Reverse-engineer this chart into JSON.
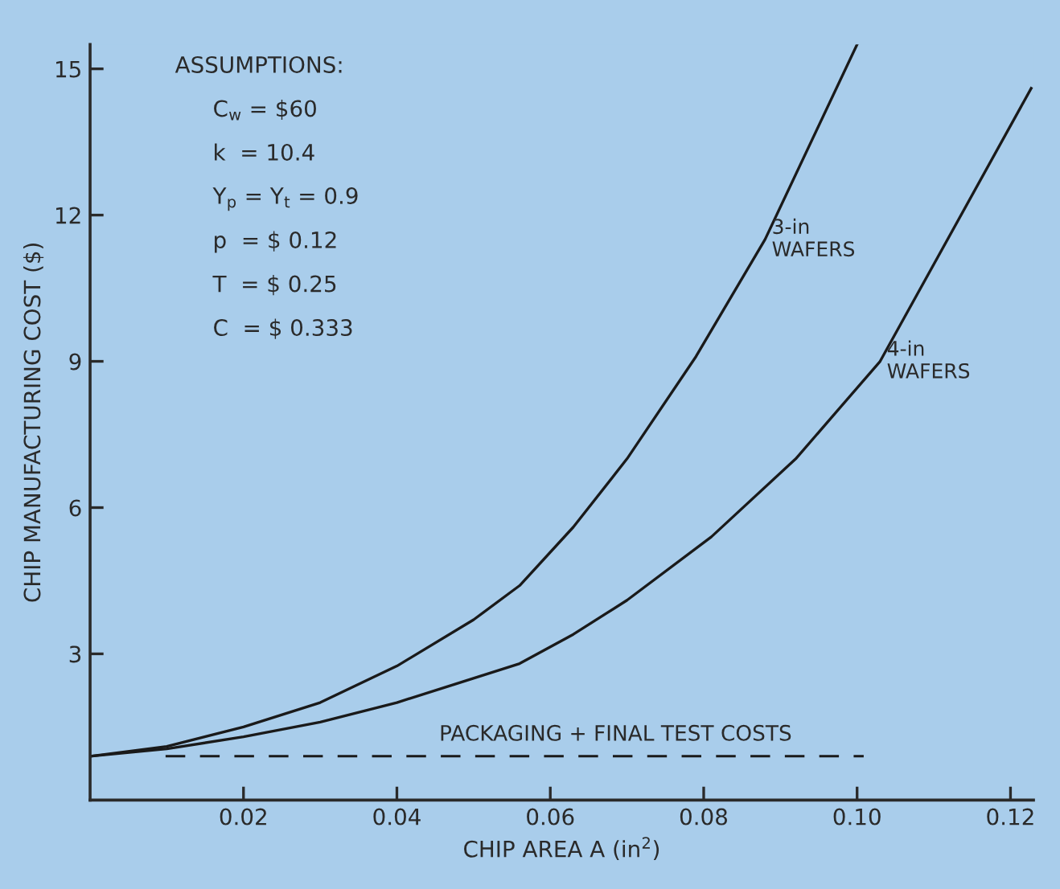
{
  "chart_data": {
    "type": "line",
    "xlabel": "CHIP AREA A (in$^{2}$)",
    "ylabel": "CHIP MANUFACTURING COST ($)",
    "series": [
      {
        "name": "3-in\nWAFERS",
        "color": "#1a1a1a",
        "x": [
          0,
          0.01,
          0.02,
          0.03,
          0.04,
          0.05,
          0.056,
          0.063,
          0.07,
          0.079,
          0.088,
          0.1
        ],
        "values": [
          0.9,
          1.1,
          1.5,
          2.0,
          2.75,
          3.7,
          4.4,
          5.6,
          7.0,
          9.1,
          11.5,
          15.5
        ]
      },
      {
        "name": "4-in\nWAFERS",
        "color": "#1a1a1a",
        "x": [
          0,
          0.01,
          0.02,
          0.03,
          0.04,
          0.048,
          0.056,
          0.063,
          0.07,
          0.081,
          0.092,
          0.103,
          0.1227
        ],
        "values": [
          0.9,
          1.05,
          1.3,
          1.6,
          2.0,
          2.4,
          2.8,
          3.4,
          4.1,
          5.4,
          7.0,
          9.0,
          14.6
        ]
      }
    ],
    "ref_lines": [
      {
        "axis": "y",
        "value": 0.9,
        "label": "PACKAGING + FINAL TEST COSTS",
        "line_style": "dashed",
        "color": "#1a1a1a"
      }
    ],
    "annotations": [
      "ASSUMPTIONS:",
      "C$_{w}$ = $60",
      "k  = 10.4",
      "Y$_{p}$ = Y$_{t}$ = 0.9",
      "p  = $ 0.12",
      "T  = $ 0.25",
      "C  = $ 0.333"
    ],
    "xlim": [
      0,
      0.123
    ],
    "ylim": [
      0,
      15.5
    ],
    "xticks": [
      0.02,
      0.04,
      0.06,
      0.08,
      {
        "value": 0.1,
        "label": "0.10"
      },
      0.12
    ],
    "yticks": [
      3,
      6,
      9,
      12,
      15
    ],
    "grid": false,
    "legend": false,
    "marker": "none",
    "line_style": "solid"
  }
}
